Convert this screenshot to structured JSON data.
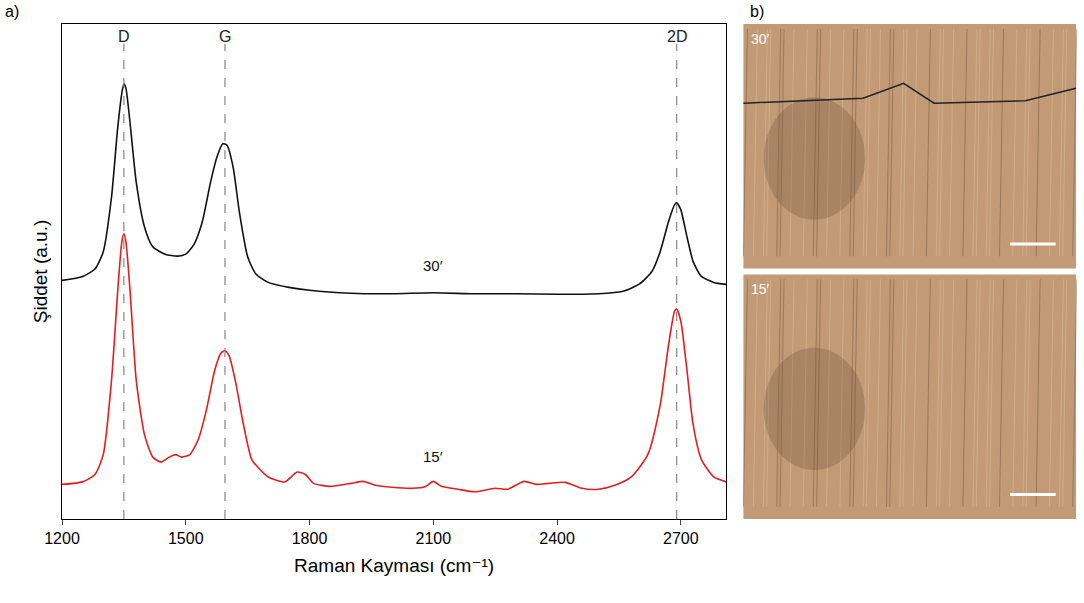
{
  "chart_data": {
    "type": "line",
    "panel_label": "a)",
    "x_label": "Raman Kayması (cm⁻¹)",
    "y_label": "Şiddet (a.u.)",
    "xlim": [
      1200,
      2810
    ],
    "xticks": [
      1200,
      1500,
      1800,
      2100,
      2400,
      2700
    ],
    "ylim": [
      0,
      10
    ],
    "tick_labels": "x",
    "grid": false,
    "peaks": [
      {
        "label": "D",
        "x": 1350
      },
      {
        "label": "G",
        "x": 1595
      },
      {
        "label": "2D",
        "x": 2690
      }
    ],
    "annotations": [
      {
        "text": "30′",
        "x": 2100,
        "y": 4.9
      },
      {
        "text": "15′",
        "x": 2100,
        "y": 1.05
      }
    ],
    "series": [
      {
        "color": "#111111",
        "x": [
          1200,
          1250,
          1280,
          1300,
          1320,
          1335,
          1345,
          1350,
          1355,
          1365,
          1380,
          1400,
          1420,
          1450,
          1480,
          1500,
          1520,
          1540,
          1560,
          1575,
          1590,
          1600,
          1615,
          1630,
          1650,
          1670,
          1700,
          1750,
          1800,
          1900,
          2000,
          2100,
          2200,
          2300,
          2400,
          2500,
          2560,
          2600,
          2630,
          2650,
          2670,
          2685,
          2690,
          2700,
          2715,
          2730,
          2750,
          2780,
          2810
        ],
        "values": [
          4.82,
          4.9,
          5.05,
          5.4,
          6.5,
          7.9,
          8.6,
          8.79,
          8.7,
          8.0,
          6.8,
          5.9,
          5.5,
          5.35,
          5.31,
          5.35,
          5.55,
          6.0,
          6.8,
          7.3,
          7.58,
          7.55,
          7.1,
          6.2,
          5.3,
          4.95,
          4.78,
          4.68,
          4.62,
          4.56,
          4.55,
          4.57,
          4.55,
          4.55,
          4.54,
          4.55,
          4.6,
          4.75,
          5.0,
          5.4,
          6.0,
          6.35,
          6.39,
          6.25,
          5.7,
          5.2,
          4.9,
          4.78,
          4.74
        ]
      },
      {
        "color": "#e02020",
        "x": [
          1200,
          1250,
          1280,
          1300,
          1320,
          1335,
          1345,
          1350,
          1355,
          1365,
          1380,
          1400,
          1420,
          1440,
          1460,
          1475,
          1490,
          1510,
          1530,
          1550,
          1570,
          1585,
          1595,
          1605,
          1620,
          1640,
          1660,
          1680,
          1700,
          1740,
          1770,
          1790,
          1810,
          1850,
          1900,
          1930,
          1960,
          2000,
          2050,
          2080,
          2100,
          2120,
          2160,
          2200,
          2250,
          2280,
          2320,
          2350,
          2380,
          2420,
          2460,
          2500,
          2540,
          2580,
          2620,
          2650,
          2670,
          2685,
          2690,
          2700,
          2715,
          2730,
          2750,
          2780,
          2810
        ],
        "values": [
          0.7,
          0.75,
          0.9,
          1.3,
          2.8,
          4.6,
          5.6,
          5.76,
          5.6,
          4.6,
          2.8,
          1.7,
          1.25,
          1.15,
          1.25,
          1.3,
          1.25,
          1.3,
          1.6,
          2.2,
          3.0,
          3.35,
          3.4,
          3.3,
          2.8,
          1.9,
          1.2,
          1.0,
          0.85,
          0.75,
          0.95,
          0.9,
          0.72,
          0.66,
          0.72,
          0.76,
          0.68,
          0.64,
          0.62,
          0.65,
          0.76,
          0.66,
          0.6,
          0.55,
          0.62,
          0.6,
          0.76,
          0.7,
          0.72,
          0.74,
          0.62,
          0.6,
          0.68,
          0.85,
          1.3,
          2.3,
          3.5,
          4.2,
          4.24,
          4.0,
          3.0,
          1.9,
          1.2,
          0.85,
          0.75
        ]
      }
    ]
  },
  "panel_b": {
    "label": "b)",
    "images": [
      {
        "label": "30′"
      },
      {
        "label": "15′"
      }
    ]
  }
}
